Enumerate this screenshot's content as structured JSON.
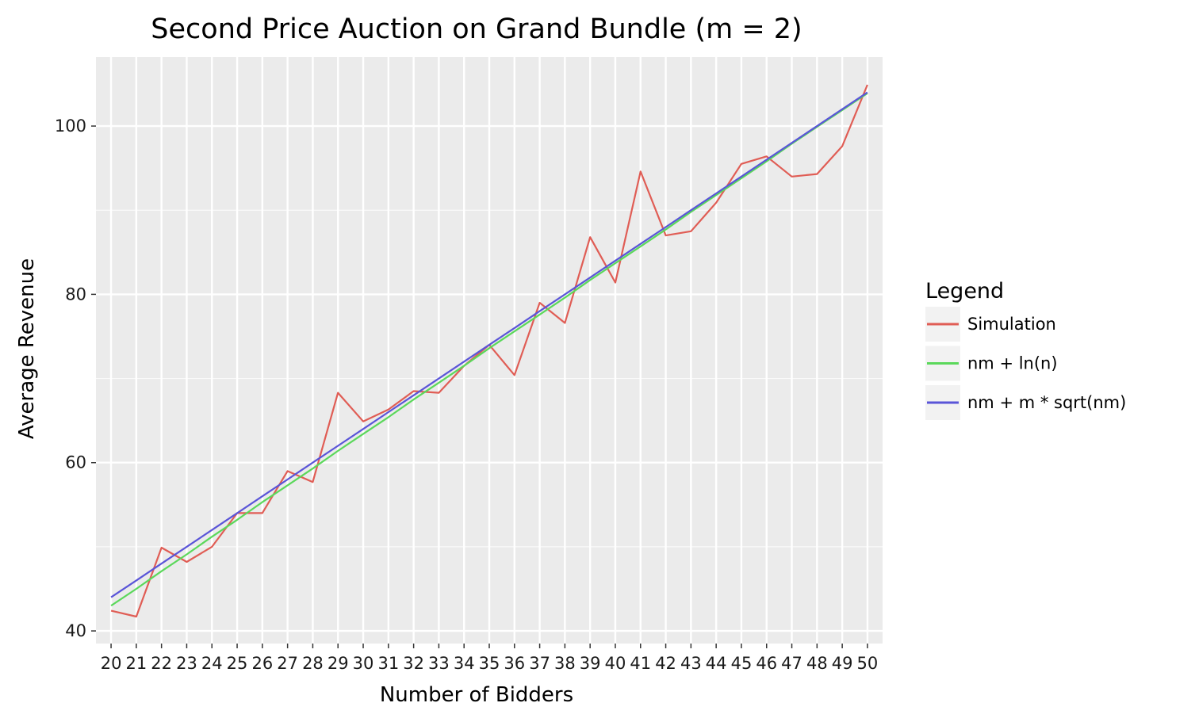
{
  "chart_data": {
    "type": "line",
    "title": "Second Price Auction on Grand Bundle (m = 2)",
    "xlabel": "Number of Bidders",
    "ylabel": "Average Revenue",
    "xlim": [
      19.4,
      50.6
    ],
    "ylim": [
      38.5,
      108.2
    ],
    "x": [
      20,
      21,
      22,
      23,
      24,
      25,
      26,
      27,
      28,
      29,
      30,
      31,
      32,
      33,
      34,
      35,
      36,
      37,
      38,
      39,
      40,
      41,
      42,
      43,
      44,
      45,
      46,
      47,
      48,
      49,
      50
    ],
    "x_tick_labels": [
      "20",
      "21",
      "22",
      "23",
      "24",
      "25",
      "26",
      "27",
      "28",
      "29",
      "30",
      "31",
      "32",
      "33",
      "34",
      "35",
      "36",
      "37",
      "38",
      "39",
      "40",
      "41",
      "42",
      "43",
      "44",
      "45",
      "46",
      "47",
      "48",
      "49",
      "50"
    ],
    "y_ticks": [
      40,
      60,
      80,
      100
    ],
    "y_tick_labels": [
      "40",
      "60",
      "80",
      "100"
    ],
    "grid": true,
    "legend": {
      "title": "Legend",
      "position": "right"
    },
    "series": [
      {
        "name": "Simulation",
        "color": "#e05d55",
        "values": [
          42.4,
          41.7,
          49.9,
          48.2,
          50.0,
          54.0,
          54.0,
          59.0,
          57.7,
          68.3,
          64.9,
          66.3,
          68.5,
          68.3,
          71.5,
          74.0,
          70.4,
          79.0,
          76.6,
          86.8,
          81.4,
          94.6,
          87.0,
          87.5,
          90.9,
          95.5,
          96.4,
          94.0,
          94.3,
          97.6,
          104.9
        ]
      },
      {
        "name": "nm + ln(n)",
        "color": "#5bd85b",
        "values": [
          43.0,
          45.0,
          47.1,
          49.1,
          51.2,
          53.2,
          55.3,
          57.3,
          59.3,
          61.4,
          63.4,
          65.4,
          67.5,
          69.5,
          71.5,
          73.6,
          75.6,
          77.6,
          79.6,
          81.7,
          83.7,
          85.7,
          87.7,
          89.8,
          91.8,
          93.8,
          95.8,
          97.9,
          99.9,
          101.9,
          103.9
        ]
      },
      {
        "name": "nm + m * sqrt(nm)",
        "color": "#5a55d8",
        "values": [
          44.0,
          46.0,
          48.0,
          50.0,
          52.0,
          54.0,
          56.0,
          58.0,
          60.0,
          62.0,
          64.0,
          66.0,
          68.0,
          70.0,
          72.0,
          74.0,
          76.0,
          78.0,
          80.0,
          82.0,
          84.0,
          86.0,
          88.0,
          90.0,
          92.0,
          94.0,
          96.0,
          98.0,
          100.0,
          102.0,
          104.0
        ]
      }
    ]
  }
}
